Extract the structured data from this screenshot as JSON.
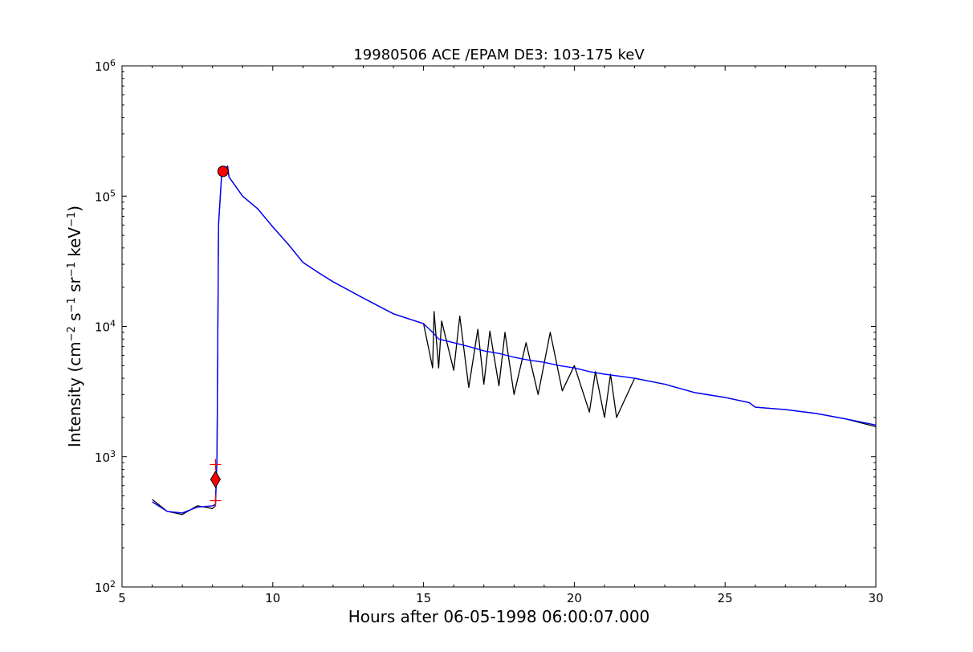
{
  "chart_data": {
    "type": "line",
    "title": "19980506 ACE /EPAM DE3: 103-175 keV",
    "xlabel": "Hours after 06-05-1998 06:00:07.000",
    "ylabel": {
      "prefix": "Intensity (cm",
      "cm_exp": "−2",
      "s": " s",
      "s_exp": "−1",
      "sr": " sr",
      "sr_exp": "−1",
      "kev": " keV",
      "kev_exp": "−1",
      "suffix": ")"
    },
    "xlim": [
      5,
      30
    ],
    "ylim": [
      100,
      1000000
    ],
    "yscale": "log",
    "grid": false,
    "x_ticks": [
      "5",
      "10",
      "15",
      "20",
      "25",
      "30"
    ],
    "y_ticks": [
      {
        "value": 100,
        "base": "10",
        "exp": "2"
      },
      {
        "value": 1000,
        "base": "10",
        "exp": "3"
      },
      {
        "value": 10000,
        "base": "10",
        "exp": "4"
      },
      {
        "value": 100000,
        "base": "10",
        "exp": "5"
      },
      {
        "value": 1000000,
        "base": "10",
        "exp": "6"
      }
    ],
    "series": [
      {
        "key": "raw",
        "color": "#000000",
        "x": [
          6.0,
          6.5,
          7.0,
          7.5,
          8.0,
          8.1,
          8.15,
          8.2,
          8.3,
          8.5,
          8.55,
          9.0,
          9.5,
          10.0,
          10.5,
          11.0,
          11.5,
          12.0,
          13.0,
          14.0,
          15.0,
          15.3,
          15.35,
          15.5,
          15.6,
          16.0,
          16.2,
          16.5,
          16.8,
          17.0,
          17.2,
          17.5,
          17.7,
          18.0,
          18.4,
          18.8,
          19.2,
          19.6,
          20.0,
          20.5,
          20.7,
          21.0,
          21.2,
          21.4,
          22.0,
          23.0,
          24.0,
          25.0,
          25.8,
          26.0,
          27.0,
          28.0,
          29.0,
          30.0
        ],
        "y": [
          470,
          380,
          360,
          420,
          400,
          420,
          1000,
          60000,
          140000,
          170000,
          140000,
          100000,
          80000,
          58000,
          43000,
          31000,
          26000,
          22000,
          16500,
          12500,
          10500,
          4800,
          13000,
          4800,
          11000,
          4600,
          12000,
          3400,
          9500,
          3600,
          9200,
          3500,
          9000,
          3000,
          7500,
          3000,
          9000,
          3200,
          5000,
          2200,
          4500,
          2000,
          4300,
          2000,
          4000,
          3600,
          3100,
          2850,
          2600,
          2400,
          2300,
          2150,
          1950,
          1700
        ]
      },
      {
        "key": "smoothed",
        "color": "#0000ff",
        "x": [
          6.0,
          6.5,
          7.0,
          7.5,
          8.0,
          8.1,
          8.15,
          8.2,
          8.3,
          8.5,
          8.55,
          9.0,
          9.5,
          10.0,
          10.5,
          11.0,
          11.5,
          12.0,
          13.0,
          14.0,
          15.0,
          15.3,
          15.5,
          16.0,
          16.5,
          17.0,
          17.5,
          18.0,
          18.5,
          19.0,
          19.5,
          20.0,
          20.5,
          21.0,
          21.5,
          22.0,
          23.0,
          24.0,
          25.0,
          25.8,
          26.0,
          27.0,
          28.0,
          29.0,
          30.0
        ],
        "y": [
          450,
          380,
          370,
          410,
          420,
          430,
          1000,
          60000,
          140000,
          170000,
          140000,
          100000,
          80000,
          58000,
          43000,
          31000,
          26000,
          22000,
          16500,
          12500,
          10500,
          9000,
          8000,
          7500,
          7000,
          6500,
          6200,
          5800,
          5500,
          5300,
          5000,
          4800,
          4500,
          4300,
          4150,
          4000,
          3600,
          3100,
          2850,
          2600,
          2400,
          2300,
          2150,
          1950,
          1750
        ]
      }
    ],
    "markers": [
      {
        "key": "onset",
        "shape": "diamond",
        "color": "#ff0000",
        "x": 8.1,
        "y": 670
      },
      {
        "key": "onset-upper",
        "shape": "plus",
        "color": "#ff0000",
        "x": 8.1,
        "y": 870
      },
      {
        "key": "onset-lower",
        "shape": "plus",
        "color": "#ff0000",
        "x": 8.1,
        "y": 460
      },
      {
        "key": "peak",
        "shape": "circle",
        "color": "#ff0000",
        "x": 8.35,
        "y": 155000
      }
    ]
  }
}
